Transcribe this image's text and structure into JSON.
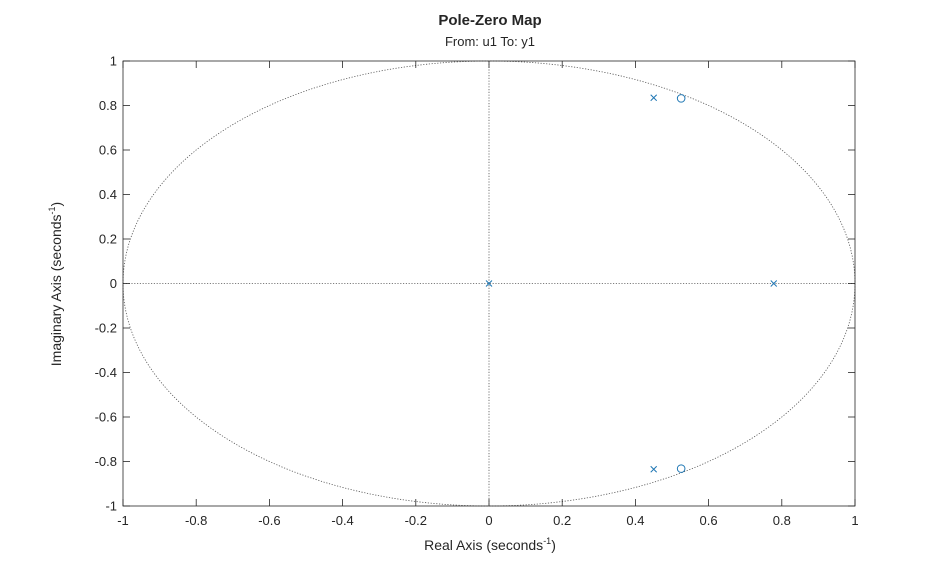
{
  "chart_data": {
    "type": "scatter",
    "title": "Pole-Zero Map",
    "subtitle": "From: u1  To: y1",
    "xlabel": {
      "text": "Real  Axis  (seconds",
      "sup": "-1",
      "close": ")"
    },
    "ylabel": {
      "text": "Imaginary  Axis  (seconds",
      "sup": "-1",
      "close": ")"
    },
    "xlim": [
      -1,
      1
    ],
    "ylim": [
      -1,
      1
    ],
    "xticks": [
      "-1",
      "-0.8",
      "-0.6",
      "-0.4",
      "-0.2",
      "0",
      "0.2",
      "0.4",
      "0.6",
      "0.8",
      "1"
    ],
    "yticks": [
      "-1",
      "-0.8",
      "-0.6",
      "-0.4",
      "-0.2",
      "0",
      "0.2",
      "0.4",
      "0.6",
      "0.8",
      "1"
    ],
    "grid": false,
    "unit_circle": true,
    "series": [
      {
        "marker": "x",
        "points": [
          [
            0.45,
            0.835
          ],
          [
            0.45,
            -0.835
          ],
          [
            0,
            0
          ],
          [
            0.778,
            0
          ]
        ]
      },
      {
        "marker": "o",
        "points": [
          [
            0.525,
            0.832
          ],
          [
            0.525,
            -0.832
          ]
        ]
      }
    ],
    "colors": {
      "marker": "#1f77b4",
      "axes": "#262626",
      "reference": "#555555"
    }
  }
}
